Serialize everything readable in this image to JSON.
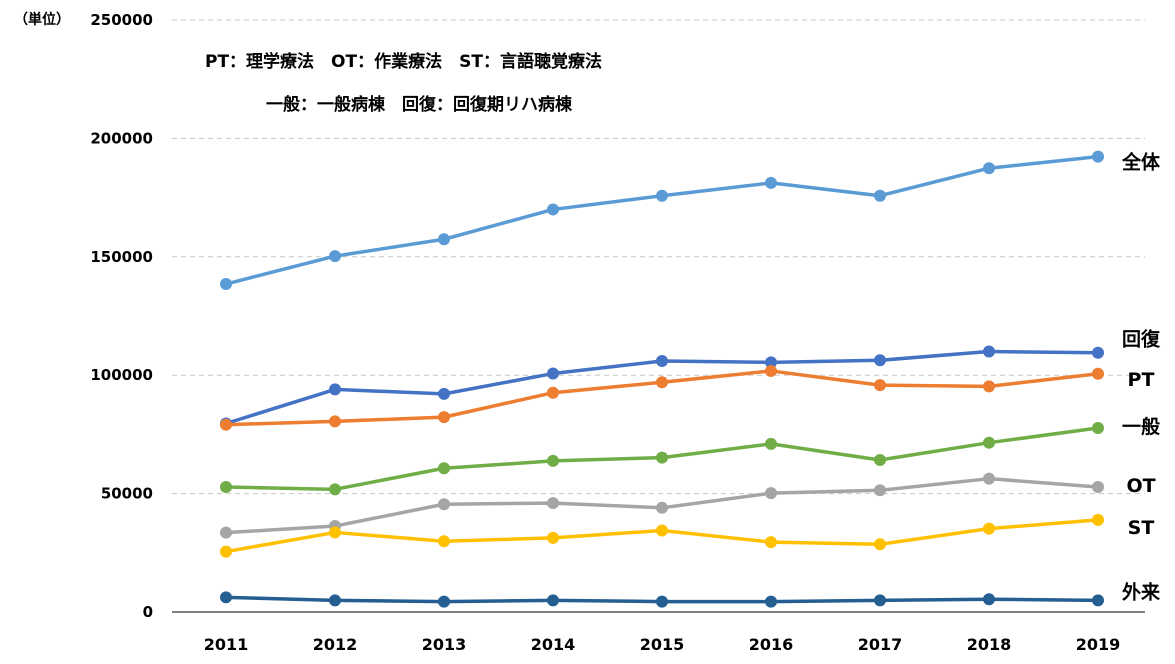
{
  "chart_data": {
    "type": "line",
    "unit_label": "（単位）",
    "notes": [
      "PT：理学療法　OT：作業療法　ST：言語聴覚療法",
      "一般：一般病棟　回復：回復期リハ病棟"
    ],
    "categories": [
      "2011",
      "2012",
      "2013",
      "2014",
      "2015",
      "2016",
      "2017",
      "2018",
      "2019"
    ],
    "ylim": [
      0,
      250000
    ],
    "yticks": [
      0,
      50000,
      100000,
      150000,
      200000,
      250000
    ],
    "grid": true,
    "series": [
      {
        "name": "全体",
        "color": "#5b9bd5",
        "values": [
          138500,
          150300,
          157400,
          170000,
          175800,
          181200,
          175800,
          187400,
          192300
        ]
      },
      {
        "name": "回復",
        "color": "#4472c4",
        "values": [
          79600,
          94000,
          92100,
          100700,
          106000,
          105400,
          106300,
          110000,
          109500
        ]
      },
      {
        "name": "PT",
        "color": "#ed7d31",
        "values": [
          79100,
          80500,
          82300,
          92600,
          97000,
          101800,
          95800,
          95300,
          100600
        ]
      },
      {
        "name": "一般",
        "color": "#70ad47",
        "values": [
          52800,
          51800,
          60700,
          63800,
          65200,
          71000,
          64200,
          71500,
          77700
        ]
      },
      {
        "name": "OT",
        "color": "#a5a5a5",
        "values": [
          33500,
          36300,
          45500,
          46000,
          44000,
          50200,
          51400,
          56300,
          52800
        ]
      },
      {
        "name": "ST",
        "color": "#ffc000",
        "values": [
          25500,
          33600,
          29900,
          31300,
          34400,
          29500,
          28600,
          35200,
          38900
        ]
      },
      {
        "name": "外来",
        "color": "#255e91",
        "values": [
          6200,
          4900,
          4400,
          4900,
          4400,
          4400,
          4900,
          5400,
          4900
        ]
      }
    ]
  }
}
